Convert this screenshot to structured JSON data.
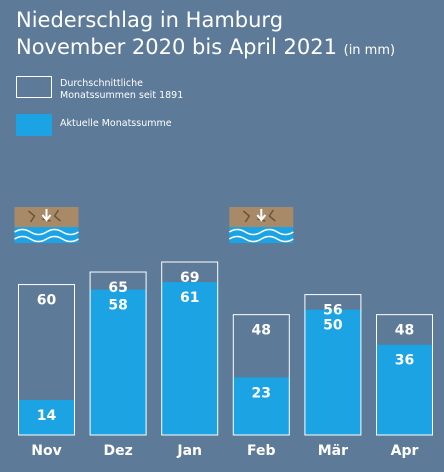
{
  "chart_data": {
    "type": "bar",
    "title": "Niederschlag in Hamburg",
    "subtitle": "November 2020 bis April 2021",
    "unit": "(in mm)",
    "categories": [
      "Nov",
      "Dez",
      "Jan",
      "Feb",
      "Mär",
      "Apr"
    ],
    "series": [
      {
        "name": "Durchschnittliche Monatssummen seit 1891",
        "values": [
          60,
          65,
          69,
          48,
          56,
          48
        ]
      },
      {
        "name": "Aktuelle Monatssumme",
        "values": [
          14,
          58,
          61,
          23,
          50,
          36
        ]
      }
    ],
    "legend": {
      "avg_line1": "Durchschnittliche",
      "avg_line2": "Monatssummen seit 1891",
      "current": "Aktuelle Monatssumme"
    },
    "drought_icon_months": [
      "Nov",
      "Feb"
    ],
    "ylim": [
      0,
      69
    ],
    "grid": false,
    "colors": {
      "background": "#5d7a99",
      "current": "#1ba3e3",
      "average_outline": "#ffffff",
      "soil": "#a88a68",
      "water": "#1ba3e3"
    }
  }
}
